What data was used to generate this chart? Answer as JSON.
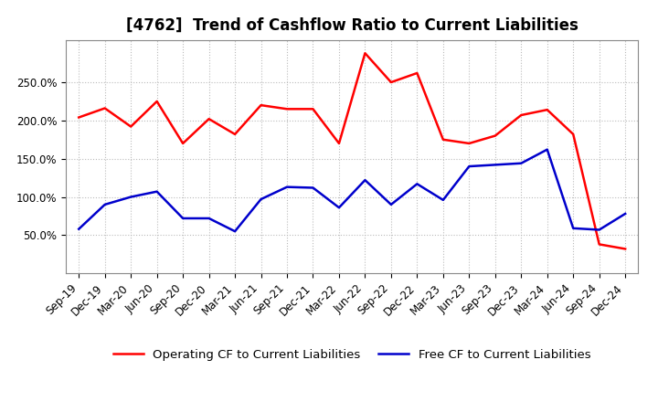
{
  "title": "[4762]  Trend of Cashflow Ratio to Current Liabilities",
  "x_labels": [
    "Sep-19",
    "Dec-19",
    "Mar-20",
    "Jun-20",
    "Sep-20",
    "Dec-20",
    "Mar-21",
    "Jun-21",
    "Sep-21",
    "Dec-21",
    "Mar-22",
    "Jun-22",
    "Sep-22",
    "Dec-22",
    "Mar-23",
    "Jun-23",
    "Sep-23",
    "Dec-23",
    "Mar-24",
    "Jun-24",
    "Sep-24",
    "Dec-24"
  ],
  "operating_cf": [
    2.04,
    2.16,
    1.92,
    2.25,
    1.7,
    2.02,
    1.82,
    2.2,
    2.15,
    2.15,
    1.7,
    2.88,
    2.5,
    2.62,
    1.75,
    1.7,
    1.8,
    2.07,
    2.14,
    1.82,
    0.38,
    0.32
  ],
  "free_cf": [
    0.58,
    0.9,
    1.0,
    1.07,
    0.72,
    0.72,
    0.55,
    0.97,
    1.13,
    1.12,
    0.86,
    1.22,
    0.9,
    1.17,
    0.96,
    1.4,
    1.42,
    1.44,
    1.62,
    0.59,
    0.57,
    0.78
  ],
  "ylim": [
    0.0,
    3.05
  ],
  "yticks": [
    0.5,
    1.0,
    1.5,
    2.0,
    2.5
  ],
  "ytick_labels": [
    "50.0%",
    "100.0%",
    "150.0%",
    "200.0%",
    "250.0%"
  ],
  "operating_color": "#ff0000",
  "free_color": "#0000cc",
  "background_color": "#ffffff",
  "grid_color": "#bbbbbb",
  "legend_operating": "Operating CF to Current Liabilities",
  "legend_free": "Free CF to Current Liabilities",
  "title_fontsize": 12,
  "tick_fontsize": 8.5,
  "legend_fontsize": 9.5
}
